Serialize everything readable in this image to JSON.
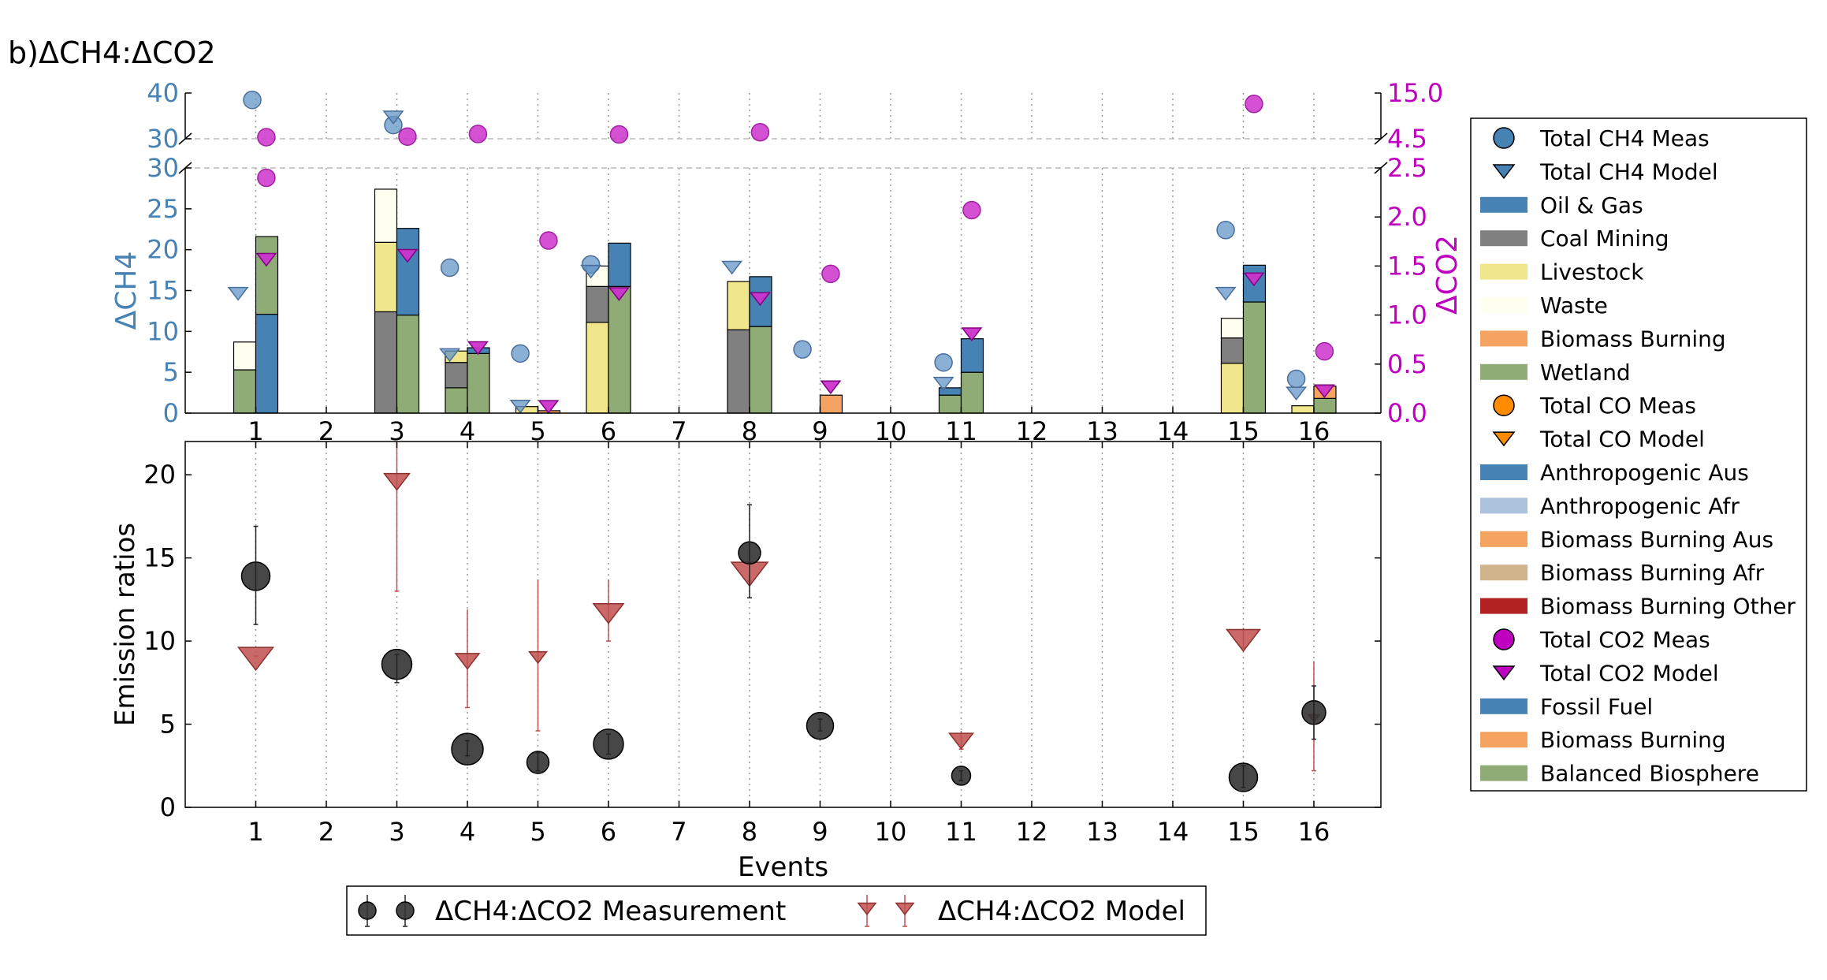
{
  "panel_label": "b)ΔCH4:ΔCO2",
  "colors": {
    "oil_gas": "#4682b4",
    "coal": "#808080",
    "livestock": "#f0e68c",
    "waste": "#fffff0",
    "biomass": "#f4a460",
    "wetland": "#8fac76",
    "ch4_meas": "#6495c8",
    "co2": "#cc33cc",
    "co_meas": "#ff8c00",
    "anthro_afr": "#adc2dc",
    "biomass_afr": "#d2b48c",
    "biomass_other": "#b22222",
    "er_meas": "#333333",
    "er_model": "#c0504d",
    "ch4_axis": "#4682b4",
    "co2_axis": "#c000c0"
  },
  "chart_data": [
    {
      "type": "bar",
      "panel": "top-broken-upper",
      "ylabel": "",
      "ylim": [
        30,
        40
      ],
      "y_ticks": [
        "30",
        "40"
      ],
      "y2lim": [
        4.5,
        15.0
      ],
      "y2_ticks": [
        "4.5",
        "15.0"
      ],
      "grid": "vertical dotted",
      "points": {
        "ch4_meas": [
          {
            "x": 1,
            "y": 38.5
          },
          {
            "x": 3,
            "y": 33
          }
        ],
        "ch4_model": [
          {
            "x": 3,
            "y": 35
          }
        ],
        "co2_meas": [
          {
            "x": 1.2,
            "y2": 4.7
          },
          {
            "x": 3.2,
            "y2": 5.0
          },
          {
            "x": 4.2,
            "y2": 5.6
          },
          {
            "x": 6.2,
            "y2": 5.5
          },
          {
            "x": 8.2,
            "y2": 6.0
          },
          {
            "x": 15.2,
            "y2": 12.5
          }
        ]
      }
    },
    {
      "type": "bar",
      "panel": "top-main",
      "ylabel": "ΔCH4",
      "y2label": "ΔCO2",
      "ylim": [
        0,
        30
      ],
      "y_ticks": [
        "0",
        "5",
        "10",
        "15",
        "20",
        "25",
        "30"
      ],
      "y2lim": [
        0,
        2.5
      ],
      "y2_ticks": [
        "0.0",
        "0.5",
        "1.0",
        "1.5",
        "2.0",
        "2.5"
      ],
      "categories": [
        "1",
        "2",
        "3",
        "4",
        "5",
        "6",
        "7",
        "8",
        "9",
        "10",
        "11",
        "12",
        "13",
        "14",
        "15",
        "16"
      ],
      "grid": "vertical dotted",
      "stacks_meas": [
        {
          "event": 1,
          "segments": [
            {
              "s": "wetland",
              "v": 5.3
            },
            {
              "s": "waste",
              "v": 3.4
            }
          ]
        },
        {
          "event": 3,
          "segments": [
            {
              "s": "coal",
              "v": 12.4
            },
            {
              "s": "livestock",
              "v": 8.5
            },
            {
              "s": "waste",
              "v": 6.5
            }
          ]
        },
        {
          "event": 4,
          "segments": [
            {
              "s": "wetland",
              "v": 3.1
            },
            {
              "s": "coal",
              "v": 3.1
            },
            {
              "s": "livestock",
              "v": 1.4
            }
          ]
        },
        {
          "event": 5,
          "segments": [
            {
              "s": "livestock",
              "v": 0.8
            }
          ]
        },
        {
          "event": 6,
          "segments": [
            {
              "s": "livestock",
              "v": 11.1
            },
            {
              "s": "coal",
              "v": 4.4
            },
            {
              "s": "waste",
              "v": 2.5
            }
          ]
        },
        {
          "event": 8,
          "segments": [
            {
              "s": "coal",
              "v": 10.2
            },
            {
              "s": "livestock",
              "v": 5.9
            }
          ]
        },
        {
          "event": 11,
          "segments": [
            {
              "s": "wetland",
              "v": 2.2
            },
            {
              "s": "oil_gas",
              "v": 0.9
            }
          ]
        },
        {
          "event": 15,
          "segments": [
            {
              "s": "livestock",
              "v": 6.1
            },
            {
              "s": "coal",
              "v": 3.1
            },
            {
              "s": "waste",
              "v": 2.4
            }
          ]
        },
        {
          "event": 16,
          "segments": [
            {
              "s": "livestock",
              "v": 0.9
            }
          ]
        }
      ],
      "stacks_model": [
        {
          "event": 1,
          "segments": [
            {
              "s": "oil_gas",
              "v": 12.1
            },
            {
              "s": "wetland",
              "v": 9.5
            }
          ]
        },
        {
          "event": 3,
          "segments": [
            {
              "s": "wetland",
              "v": 12.0
            },
            {
              "s": "oil_gas",
              "v": 10.6
            }
          ]
        },
        {
          "event": 4,
          "segments": [
            {
              "s": "wetland",
              "v": 7.3
            },
            {
              "s": "oil_gas",
              "v": 0.7
            }
          ]
        },
        {
          "event": 5,
          "segments": [
            {
              "s": "biomass",
              "v": 0.3
            }
          ]
        },
        {
          "event": 6,
          "segments": [
            {
              "s": "wetland",
              "v": 15.5
            },
            {
              "s": "oil_gas",
              "v": 5.3
            }
          ]
        },
        {
          "event": 8,
          "segments": [
            {
              "s": "wetland",
              "v": 10.6
            },
            {
              "s": "oil_gas",
              "v": 6.1
            }
          ]
        },
        {
          "event": 9,
          "segments": [
            {
              "s": "biomass",
              "v": 2.2
            }
          ]
        },
        {
          "event": 11,
          "segments": [
            {
              "s": "wetland",
              "v": 5.0
            },
            {
              "s": "oil_gas",
              "v": 4.1
            }
          ]
        },
        {
          "event": 15,
          "segments": [
            {
              "s": "wetland",
              "v": 13.6
            },
            {
              "s": "oil_gas",
              "v": 4.5
            }
          ]
        },
        {
          "event": 16,
          "segments": [
            {
              "s": "wetland",
              "v": 1.8
            },
            {
              "s": "biomass",
              "v": 1.5
            }
          ]
        }
      ],
      "ch4_meas": [
        {
          "x": 3.8,
          "y": 17.8
        },
        {
          "x": 4.8,
          "y": 7.3
        },
        {
          "x": 5.8,
          "y": 18.2
        },
        {
          "x": 8.8,
          "y": 7.8
        },
        {
          "x": 10.8,
          "y": 6.2
        },
        {
          "x": 14.8,
          "y": 22.4
        },
        {
          "x": 15.8,
          "y": 4.2
        }
      ],
      "ch4_model": [
        {
          "x": 0.8,
          "y": 14.8
        },
        {
          "x": 3.8,
          "y": 7.3
        },
        {
          "x": 4.8,
          "y": 1.0
        },
        {
          "x": 5.8,
          "y": 17.5
        },
        {
          "x": 7.8,
          "y": 18.0
        },
        {
          "x": 10.8,
          "y": 3.8
        },
        {
          "x": 14.8,
          "y": 14.8
        },
        {
          "x": 15.8,
          "y": 2.6
        }
      ],
      "co2_meas": [
        {
          "x": 1.2,
          "y2": 2.4
        },
        {
          "x": 5.2,
          "y2": 1.76
        },
        {
          "x": 9.2,
          "y2": 1.42
        },
        {
          "x": 11.2,
          "y2": 2.07
        },
        {
          "x": 16.2,
          "y2": 0.63
        }
      ],
      "co2_model": [
        {
          "x": 1.2,
          "y2": 1.58
        },
        {
          "x": 3.2,
          "y2": 1.62
        },
        {
          "x": 4.2,
          "y2": 0.68
        },
        {
          "x": 5.2,
          "y2": 0.08
        },
        {
          "x": 6.2,
          "y2": 1.23
        },
        {
          "x": 8.2,
          "y2": 1.18
        },
        {
          "x": 9.2,
          "y2": 0.28
        },
        {
          "x": 11.2,
          "y2": 0.82
        },
        {
          "x": 15.2,
          "y2": 1.38
        },
        {
          "x": 16.2,
          "y2": 0.24
        }
      ]
    },
    {
      "type": "scatter",
      "panel": "bottom",
      "xlabel": "Events",
      "ylabel": "Emission ratios",
      "ylim": [
        0,
        22
      ],
      "y_ticks": [
        "0",
        "5",
        "10",
        "15",
        "20"
      ],
      "categories": [
        "1",
        "2",
        "3",
        "4",
        "5",
        "6",
        "7",
        "8",
        "9",
        "10",
        "11",
        "12",
        "13",
        "14",
        "15",
        "16"
      ],
      "grid": "vertical dotted",
      "series": [
        {
          "name": "ΔCH4:ΔCO2 Measurement",
          "points": [
            {
              "x": 1,
              "y": 13.9,
              "lo": 11.0,
              "hi": 16.9,
              "r": 18
            },
            {
              "x": 3,
              "y": 8.6,
              "lo": 7.5,
              "hi": 9.2,
              "r": 19
            },
            {
              "x": 4,
              "y": 3.5,
              "lo": 3.1,
              "hi": 4.0,
              "r": 20
            },
            {
              "x": 5,
              "y": 2.7,
              "lo": 2.2,
              "hi": 3.3,
              "r": 14
            },
            {
              "x": 6,
              "y": 3.8,
              "lo": 3.2,
              "hi": 4.4,
              "r": 19
            },
            {
              "x": 8,
              "y": 15.3,
              "lo": 12.6,
              "hi": 18.2,
              "r": 14
            },
            {
              "x": 9,
              "y": 4.9,
              "lo": 4.6,
              "hi": 5.3,
              "r": 17
            },
            {
              "x": 11,
              "y": 1.9,
              "lo": 1.6,
              "hi": 2.2,
              "r": 12
            },
            {
              "x": 15,
              "y": 1.8,
              "lo": 1.2,
              "hi": 2.5,
              "r": 18
            },
            {
              "x": 16,
              "y": 5.7,
              "lo": 4.1,
              "hi": 7.3,
              "r": 15
            }
          ]
        },
        {
          "name": "ΔCH4:ΔCO2 Model",
          "points": [
            {
              "x": 1,
              "y": 9.1,
              "lo": 9.1,
              "hi": 9.1,
              "s": 22
            },
            {
              "x": 3,
              "y": 19.7,
              "lo": 13.0,
              "hi": 22.0,
              "s": 16
            },
            {
              "x": 4,
              "y": 8.9,
              "lo": 6.0,
              "hi": 11.9,
              "s": 15
            },
            {
              "x": 5,
              "y": 9.1,
              "lo": 4.6,
              "hi": 13.7,
              "s": 11
            },
            {
              "x": 6,
              "y": 11.8,
              "lo": 10.0,
              "hi": 13.7,
              "s": 19
            },
            {
              "x": 8,
              "y": 14.2,
              "lo": 13.6,
              "hi": 14.8,
              "s": 23
            },
            {
              "x": 11,
              "y": 4.1,
              "lo": 3.5,
              "hi": 4.6,
              "s": 15
            },
            {
              "x": 15,
              "y": 10.2,
              "lo": 9.6,
              "hi": 10.8,
              "s": 21
            },
            {
              "x": 16,
              "y": 5.4,
              "lo": 2.2,
              "hi": 8.8,
              "s": 7
            }
          ]
        }
      ]
    }
  ],
  "legend_right": [
    {
      "label": "Total CH4 Meas",
      "marker": "circle",
      "color": "#4682b4"
    },
    {
      "label": "Total CH4 Model",
      "marker": "triangle",
      "color": "#4682b4"
    },
    {
      "label": "Oil & Gas",
      "marker": "rect",
      "color": "#4682b4"
    },
    {
      "label": "Coal Mining",
      "marker": "rect",
      "color": "#808080"
    },
    {
      "label": "Livestock",
      "marker": "rect",
      "color": "#f0e68c"
    },
    {
      "label": "Waste",
      "marker": "rect",
      "color": "#fffff0"
    },
    {
      "label": "Biomass Burning",
      "marker": "rect",
      "color": "#f4a460"
    },
    {
      "label": "Wetland",
      "marker": "rect",
      "color": "#8fac76"
    },
    {
      "label": "Total CO Meas",
      "marker": "circle",
      "color": "#ff8c00"
    },
    {
      "label": "Total CO Model",
      "marker": "triangle",
      "color": "#ff8c00"
    },
    {
      "label": "Anthropogenic Aus",
      "marker": "rect",
      "color": "#4682b4"
    },
    {
      "label": "Anthropogenic Afr",
      "marker": "rect",
      "color": "#adc2dc"
    },
    {
      "label": "Biomass Burning Aus",
      "marker": "rect",
      "color": "#f4a460"
    },
    {
      "label": "Biomass Burning Afr",
      "marker": "rect",
      "color": "#d2b48c"
    },
    {
      "label": "Biomass Burning Other",
      "marker": "rect",
      "color": "#b22222"
    },
    {
      "label": "Total CO2 Meas",
      "marker": "circle",
      "color": "#c000c0"
    },
    {
      "label": "Total CO2 Model",
      "marker": "triangle",
      "color": "#c000c0"
    },
    {
      "label": "Fossil Fuel",
      "marker": "rect",
      "color": "#4682b4"
    },
    {
      "label": "Biomass Burning",
      "marker": "rect",
      "color": "#f4a460"
    },
    {
      "label": "Balanced Biosphere",
      "marker": "rect",
      "color": "#8fac76"
    }
  ],
  "legend_bottom": [
    {
      "label": "ΔCH4:ΔCO2 Measurement",
      "marker": "circle",
      "color": "#333333"
    },
    {
      "label": "ΔCH4:ΔCO2 Model",
      "marker": "triangle",
      "color": "#c0504d"
    }
  ]
}
